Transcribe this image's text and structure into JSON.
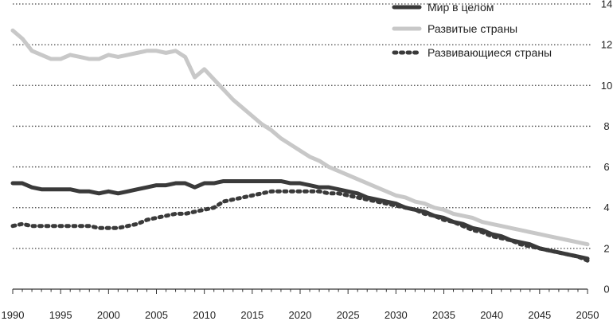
{
  "chart_data": {
    "type": "line",
    "title": "",
    "xlabel": "",
    "ylabel": "",
    "xlim": [
      1990,
      2050
    ],
    "ylim": [
      0,
      14
    ],
    "x_ticks": [
      "1990",
      "1995",
      "2000",
      "2005",
      "2010",
      "2015",
      "2020",
      "2025",
      "2030",
      "2035",
      "2040",
      "2045",
      "2050"
    ],
    "y_ticks": [
      "0",
      "2",
      "4",
      "6",
      "8",
      "10",
      "12",
      "14"
    ],
    "grid": "horizontal-dotted",
    "legend_position": "top-right",
    "x": [
      1990,
      1991,
      1992,
      1993,
      1994,
      1995,
      1996,
      1997,
      1998,
      1999,
      2000,
      2001,
      2002,
      2003,
      2004,
      2005,
      2006,
      2007,
      2008,
      2009,
      2010,
      2011,
      2012,
      2013,
      2014,
      2015,
      2016,
      2017,
      2018,
      2019,
      2020,
      2021,
      2022,
      2023,
      2024,
      2025,
      2026,
      2027,
      2028,
      2029,
      2030,
      2031,
      2032,
      2033,
      2034,
      2035,
      2036,
      2037,
      2038,
      2039,
      2040,
      2041,
      2042,
      2043,
      2044,
      2045,
      2046,
      2047,
      2048,
      2049,
      2050
    ],
    "series": [
      {
        "name": "Мир в целом",
        "color": "#3a3a3a",
        "style": "solid",
        "values": [
          5.2,
          5.2,
          5.0,
          4.9,
          4.9,
          4.9,
          4.9,
          4.8,
          4.8,
          4.7,
          4.8,
          4.7,
          4.8,
          4.9,
          5.0,
          5.1,
          5.1,
          5.2,
          5.2,
          5.0,
          5.2,
          5.2,
          5.3,
          5.3,
          5.3,
          5.3,
          5.3,
          5.3,
          5.3,
          5.2,
          5.2,
          5.1,
          5.0,
          5.0,
          4.9,
          4.8,
          4.7,
          4.5,
          4.4,
          4.3,
          4.2,
          4.0,
          3.9,
          3.8,
          3.6,
          3.5,
          3.3,
          3.2,
          3.0,
          2.9,
          2.7,
          2.6,
          2.4,
          2.3,
          2.2,
          2.0,
          1.9,
          1.8,
          1.7,
          1.6,
          1.5
        ]
      },
      {
        "name": "Развитые страны",
        "color": "#c8c8c8",
        "style": "solid",
        "values": [
          12.7,
          12.3,
          11.7,
          11.5,
          11.3,
          11.3,
          11.5,
          11.4,
          11.3,
          11.3,
          11.5,
          11.4,
          11.5,
          11.6,
          11.7,
          11.7,
          11.6,
          11.7,
          11.4,
          10.4,
          10.8,
          10.3,
          9.8,
          9.3,
          8.9,
          8.5,
          8.1,
          7.8,
          7.4,
          7.1,
          6.8,
          6.5,
          6.3,
          6.0,
          5.8,
          5.6,
          5.4,
          5.2,
          5.0,
          4.8,
          4.6,
          4.5,
          4.3,
          4.2,
          4.0,
          3.9,
          3.7,
          3.6,
          3.5,
          3.3,
          3.2,
          3.1,
          3.0,
          2.9,
          2.8,
          2.7,
          2.6,
          2.5,
          2.4,
          2.3,
          2.2
        ]
      },
      {
        "name": "Развивающиеся страны",
        "color": "#3a3a3a",
        "style": "dotted",
        "values": [
          3.1,
          3.2,
          3.1,
          3.1,
          3.1,
          3.1,
          3.1,
          3.1,
          3.1,
          3.0,
          3.0,
          3.0,
          3.1,
          3.2,
          3.4,
          3.5,
          3.6,
          3.7,
          3.7,
          3.8,
          3.9,
          4.0,
          4.3,
          4.4,
          4.5,
          4.6,
          4.7,
          4.8,
          4.8,
          4.8,
          4.8,
          4.8,
          4.8,
          4.7,
          4.7,
          4.6,
          4.5,
          4.4,
          4.3,
          4.2,
          4.1,
          4.0,
          3.9,
          3.7,
          3.6,
          3.4,
          3.3,
          3.1,
          2.9,
          2.8,
          2.6,
          2.5,
          2.4,
          2.2,
          2.1,
          2.0,
          1.9,
          1.8,
          1.7,
          1.6,
          1.4
        ]
      }
    ]
  }
}
